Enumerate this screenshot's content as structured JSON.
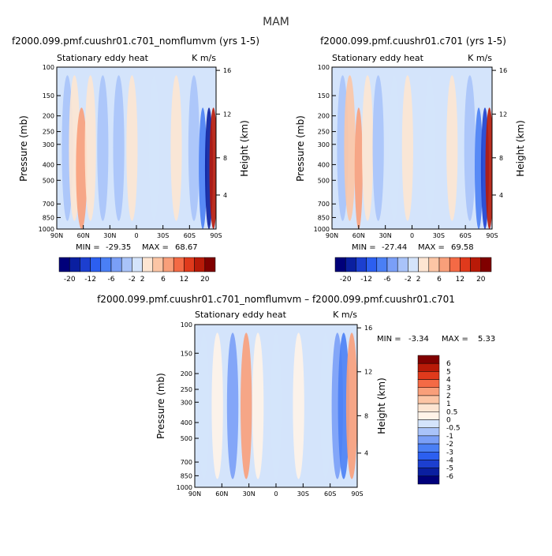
{
  "page_title": "MAM",
  "chart_data": [
    {
      "type": "heatmap",
      "title": "f2000.099.pmf.cuushr01.c701_nomflumvm (yrs 1-5)",
      "left_label": "Stationary eddy heat",
      "right_label": "K m/s",
      "ylabel": "Pressure (mb)",
      "ylabel_right": "Height (km)",
      "xticks": [
        "90N",
        "60N",
        "30N",
        "0",
        "30S",
        "60S",
        "90S"
      ],
      "yticks": [
        "100",
        "150",
        "200",
        "250",
        "300",
        "400",
        "500",
        "700",
        "850",
        "1000"
      ],
      "height_ticks": [
        "16",
        "12",
        "8",
        "4"
      ],
      "min_label": "MIN =",
      "min_value": "-29.35",
      "max_label": "MAX =",
      "max_value": "68.67",
      "colorbar_ticks": [
        "-20",
        "-12",
        "-6",
        "-2",
        "2",
        "6",
        "12",
        "20"
      ],
      "colorbar_colors": [
        "#00007a",
        "#0a1fa0",
        "#1c3fcf",
        "#2c5ff0",
        "#4a7ff5",
        "#7a9ff7",
        "#a9c3f9",
        "#d4e4fb",
        "#fde5d2",
        "#fcc5a5",
        "#f99f7a",
        "#f46a45",
        "#e03a1c",
        "#b81a08",
        "#800000"
      ],
      "bands": [
        {
          "x": -78,
          "side": "L",
          "v": -3
        },
        {
          "x": -70,
          "side": "L",
          "v": 2
        },
        {
          "x": -62,
          "side": "L",
          "v": 5
        },
        {
          "x": -52,
          "side": "L",
          "v": 2
        },
        {
          "x": -38,
          "side": "L",
          "v": -2
        },
        {
          "x": -20,
          "side": "L",
          "v": -2
        },
        {
          "x": -5,
          "side": "L",
          "v": 1
        },
        {
          "x": 20,
          "side": "L",
          "v": -1
        },
        {
          "x": 45,
          "side": "L",
          "v": 1
        },
        {
          "x": 65,
          "side": "L",
          "v": -2
        },
        {
          "x": 75,
          "side": "L",
          "v": -8
        },
        {
          "x": 82,
          "side": "L",
          "v": -16
        },
        {
          "x": 87,
          "side": "L",
          "v": 16
        }
      ]
    },
    {
      "type": "heatmap",
      "title": "f2000.099.pmf.cuushr01.c701 (yrs 1-5)",
      "left_label": "Stationary eddy heat",
      "right_label": "K m/s",
      "ylabel": "Pressure (mb)",
      "ylabel_right": "Height (km)",
      "xticks": [
        "90N",
        "60N",
        "30N",
        "0",
        "30S",
        "60S",
        "90S"
      ],
      "yticks": [
        "100",
        "150",
        "200",
        "250",
        "300",
        "400",
        "500",
        "700",
        "850",
        "1000"
      ],
      "height_ticks": [
        "16",
        "12",
        "8",
        "4"
      ],
      "min_label": "MIN =",
      "min_value": "-27.44",
      "max_label": "MAX =",
      "max_value": "69.58",
      "colorbar_ticks": [
        "-20",
        "-12",
        "-6",
        "-2",
        "2",
        "6",
        "12",
        "20"
      ],
      "colorbar_colors": [
        "#00007a",
        "#0a1fa0",
        "#1c3fcf",
        "#2c5ff0",
        "#4a7ff5",
        "#7a9ff7",
        "#a9c3f9",
        "#d4e4fb",
        "#fde5d2",
        "#fcc5a5",
        "#f99f7a",
        "#f46a45",
        "#e03a1c",
        "#b81a08",
        "#800000"
      ],
      "bands": [
        {
          "x": -78,
          "side": "L",
          "v": -3
        },
        {
          "x": -70,
          "side": "L",
          "v": 3
        },
        {
          "x": -60,
          "side": "L",
          "v": 6
        },
        {
          "x": -50,
          "side": "L",
          "v": 2
        },
        {
          "x": -38,
          "side": "L",
          "v": -2
        },
        {
          "x": -20,
          "side": "L",
          "v": -1
        },
        {
          "x": -5,
          "side": "L",
          "v": 1
        },
        {
          "x": 20,
          "side": "L",
          "v": -1
        },
        {
          "x": 45,
          "side": "L",
          "v": 1
        },
        {
          "x": 65,
          "side": "L",
          "v": -2
        },
        {
          "x": 75,
          "side": "L",
          "v": -7
        },
        {
          "x": 82,
          "side": "L",
          "v": -14
        },
        {
          "x": 87,
          "side": "L",
          "v": 14
        }
      ]
    },
    {
      "type": "heatmap",
      "title": "f2000.099.pmf.cuushr01.c701_nomflumvm – f2000.099.pmf.cuushr01.c701",
      "left_label": "Stationary eddy heat",
      "right_label": "K m/s",
      "ylabel": "Pressure (mb)",
      "ylabel_right": "Height (km)",
      "xticks": [
        "90N",
        "60N",
        "30N",
        "0",
        "30S",
        "60S",
        "90S"
      ],
      "yticks": [
        "100",
        "150",
        "200",
        "250",
        "300",
        "400",
        "500",
        "700",
        "850",
        "1000"
      ],
      "height_ticks": [
        "16",
        "12",
        "8",
        "4"
      ],
      "min_label": "MIN =",
      "min_value": "-3.34",
      "max_label": "MAX =",
      "max_value": "5.33",
      "colorbar_ticks": [
        "6",
        "5",
        "4",
        "3",
        "2",
        "1",
        "0.5",
        "0",
        "-0.5",
        "-1",
        "-2",
        "-3",
        "-4",
        "-5",
        "-6"
      ],
      "colorbar_colors": [
        "#800000",
        "#b81a08",
        "#e03a1c",
        "#f46a45",
        "#f99f7a",
        "#fcc5a5",
        "#fde5d2",
        "#fff3e8",
        "#d4e4fb",
        "#a9c3f9",
        "#7a9ff7",
        "#4a7ff5",
        "#2c5ff0",
        "#1c3fcf",
        "#0a1fa0",
        "#00007a"
      ],
      "bands": [
        {
          "x": -80,
          "side": "L",
          "v": -0.3
        },
        {
          "x": -65,
          "side": "L",
          "v": 0.3
        },
        {
          "x": -48,
          "side": "L",
          "v": -1.5
        },
        {
          "x": -33,
          "side": "L",
          "v": 2
        },
        {
          "x": -20,
          "side": "L",
          "v": 0.3
        },
        {
          "x": 0,
          "side": "L",
          "v": -0.2
        },
        {
          "x": 25,
          "side": "L",
          "v": 0.3
        },
        {
          "x": 55,
          "side": "L",
          "v": -0.3
        },
        {
          "x": 68,
          "side": "L",
          "v": -1.5
        },
        {
          "x": 75,
          "side": "L",
          "v": -3
        },
        {
          "x": 84,
          "side": "L",
          "v": 2
        }
      ]
    }
  ]
}
